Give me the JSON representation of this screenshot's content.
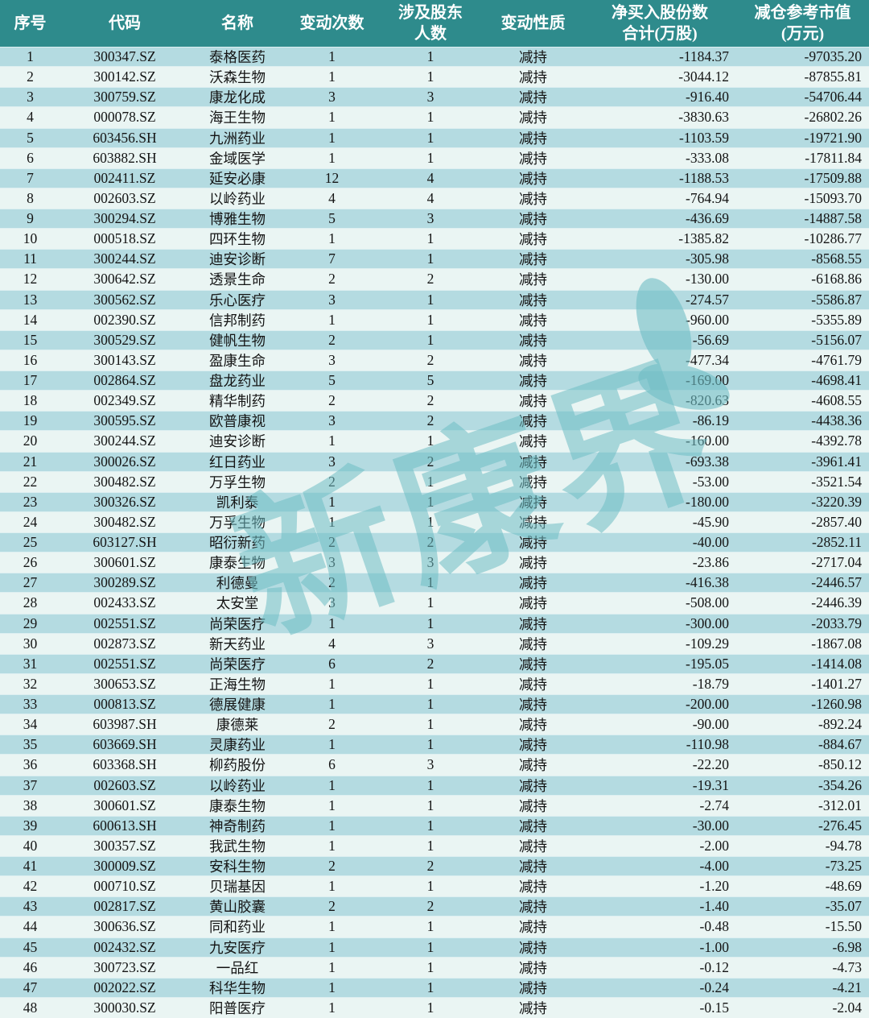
{
  "chart_data": {
    "type": "table",
    "columns": [
      {
        "label_lines": [
          "序号"
        ],
        "align": "center"
      },
      {
        "label_lines": [
          "代码"
        ],
        "align": "center"
      },
      {
        "label_lines": [
          "名称"
        ],
        "align": "center"
      },
      {
        "label_lines": [
          "变动次数"
        ],
        "align": "center"
      },
      {
        "label_lines": [
          "涉及股东",
          "人数"
        ],
        "align": "center"
      },
      {
        "label_lines": [
          "变动性质"
        ],
        "align": "center"
      },
      {
        "label_lines": [
          "净买入股份数",
          "合计(万股)"
        ],
        "align": "right"
      },
      {
        "label_lines": [
          "减仓参考市值",
          "(万元)"
        ],
        "align": "right"
      }
    ],
    "rows": [
      [
        "1",
        "300347.SZ",
        "泰格医药",
        "1",
        "1",
        "减持",
        "-1184.37",
        "-97035.20"
      ],
      [
        "2",
        "300142.SZ",
        "沃森生物",
        "1",
        "1",
        "减持",
        "-3044.12",
        "-87855.81"
      ],
      [
        "3",
        "300759.SZ",
        "康龙化成",
        "3",
        "3",
        "减持",
        "-916.40",
        "-54706.44"
      ],
      [
        "4",
        "000078.SZ",
        "海王生物",
        "1",
        "1",
        "减持",
        "-3830.63",
        "-26802.26"
      ],
      [
        "5",
        "603456.SH",
        "九洲药业",
        "1",
        "1",
        "减持",
        "-1103.59",
        "-19721.90"
      ],
      [
        "6",
        "603882.SH",
        "金域医学",
        "1",
        "1",
        "减持",
        "-333.08",
        "-17811.84"
      ],
      [
        "7",
        "002411.SZ",
        "延安必康",
        "12",
        "4",
        "减持",
        "-1188.53",
        "-17509.88"
      ],
      [
        "8",
        "002603.SZ",
        "以岭药业",
        "4",
        "4",
        "减持",
        "-764.94",
        "-15093.70"
      ],
      [
        "9",
        "300294.SZ",
        "博雅生物",
        "5",
        "3",
        "减持",
        "-436.69",
        "-14887.58"
      ],
      [
        "10",
        "000518.SZ",
        "四环生物",
        "1",
        "1",
        "减持",
        "-1385.82",
        "-10286.77"
      ],
      [
        "11",
        "300244.SZ",
        "迪安诊断",
        "7",
        "1",
        "减持",
        "-305.98",
        "-8568.55"
      ],
      [
        "12",
        "300642.SZ",
        "透景生命",
        "2",
        "2",
        "减持",
        "-130.00",
        "-6168.86"
      ],
      [
        "13",
        "300562.SZ",
        "乐心医疗",
        "3",
        "1",
        "减持",
        "-274.57",
        "-5586.87"
      ],
      [
        "14",
        "002390.SZ",
        "信邦制药",
        "1",
        "1",
        "减持",
        "-960.00",
        "-5355.89"
      ],
      [
        "15",
        "300529.SZ",
        "健帆生物",
        "2",
        "1",
        "减持",
        "-56.69",
        "-5156.07"
      ],
      [
        "16",
        "300143.SZ",
        "盈康生命",
        "3",
        "2",
        "减持",
        "-477.34",
        "-4761.79"
      ],
      [
        "17",
        "002864.SZ",
        "盘龙药业",
        "5",
        "5",
        "减持",
        "-169.00",
        "-4698.41"
      ],
      [
        "18",
        "002349.SZ",
        "精华制药",
        "2",
        "2",
        "减持",
        "-820.63",
        "-4608.55"
      ],
      [
        "19",
        "300595.SZ",
        "欧普康视",
        "3",
        "2",
        "减持",
        "-86.19",
        "-4438.36"
      ],
      [
        "20",
        "300244.SZ",
        "迪安诊断",
        "1",
        "1",
        "减持",
        "-160.00",
        "-4392.78"
      ],
      [
        "21",
        "300026.SZ",
        "红日药业",
        "3",
        "2",
        "减持",
        "-693.38",
        "-3961.41"
      ],
      [
        "22",
        "300482.SZ",
        "万孚生物",
        "2",
        "1",
        "减持",
        "-53.00",
        "-3521.54"
      ],
      [
        "23",
        "300326.SZ",
        "凯利泰",
        "1",
        "1",
        "减持",
        "-180.00",
        "-3220.39"
      ],
      [
        "24",
        "300482.SZ",
        "万孚生物",
        "1",
        "1",
        "减持",
        "-45.90",
        "-2857.40"
      ],
      [
        "25",
        "603127.SH",
        "昭衍新药",
        "2",
        "2",
        "减持",
        "-40.00",
        "-2852.11"
      ],
      [
        "26",
        "300601.SZ",
        "康泰生物",
        "3",
        "3",
        "减持",
        "-23.86",
        "-2717.04"
      ],
      [
        "27",
        "300289.SZ",
        "利德曼",
        "2",
        "1",
        "减持",
        "-416.38",
        "-2446.57"
      ],
      [
        "28",
        "002433.SZ",
        "太安堂",
        "3",
        "1",
        "减持",
        "-508.00",
        "-2446.39"
      ],
      [
        "29",
        "002551.SZ",
        "尚荣医疗",
        "1",
        "1",
        "减持",
        "-300.00",
        "-2033.79"
      ],
      [
        "30",
        "002873.SZ",
        "新天药业",
        "4",
        "3",
        "减持",
        "-109.29",
        "-1867.08"
      ],
      [
        "31",
        "002551.SZ",
        "尚荣医疗",
        "6",
        "2",
        "减持",
        "-195.05",
        "-1414.08"
      ],
      [
        "32",
        "300653.SZ",
        "正海生物",
        "1",
        "1",
        "减持",
        "-18.79",
        "-1401.27"
      ],
      [
        "33",
        "000813.SZ",
        "德展健康",
        "1",
        "1",
        "减持",
        "-200.00",
        "-1260.98"
      ],
      [
        "34",
        "603987.SH",
        "康德莱",
        "2",
        "1",
        "减持",
        "-90.00",
        "-892.24"
      ],
      [
        "35",
        "603669.SH",
        "灵康药业",
        "1",
        "1",
        "减持",
        "-110.98",
        "-884.67"
      ],
      [
        "36",
        "603368.SH",
        "柳药股份",
        "6",
        "3",
        "减持",
        "-22.20",
        "-850.12"
      ],
      [
        "37",
        "002603.SZ",
        "以岭药业",
        "1",
        "1",
        "减持",
        "-19.31",
        "-354.26"
      ],
      [
        "38",
        "300601.SZ",
        "康泰生物",
        "1",
        "1",
        "减持",
        "-2.74",
        "-312.01"
      ],
      [
        "39",
        "600613.SH",
        "神奇制药",
        "1",
        "1",
        "减持",
        "-30.00",
        "-276.45"
      ],
      [
        "40",
        "300357.SZ",
        "我武生物",
        "1",
        "1",
        "减持",
        "-2.00",
        "-94.78"
      ],
      [
        "41",
        "300009.SZ",
        "安科生物",
        "2",
        "2",
        "减持",
        "-4.00",
        "-73.25"
      ],
      [
        "42",
        "000710.SZ",
        "贝瑞基因",
        "1",
        "1",
        "减持",
        "-1.20",
        "-48.69"
      ],
      [
        "43",
        "002817.SZ",
        "黄山胶囊",
        "2",
        "2",
        "减持",
        "-1.40",
        "-35.07"
      ],
      [
        "44",
        "300636.SZ",
        "同和药业",
        "1",
        "1",
        "减持",
        "-0.48",
        "-15.50"
      ],
      [
        "45",
        "002432.SZ",
        "九安医疗",
        "1",
        "1",
        "减持",
        "-1.00",
        "-6.98"
      ],
      [
        "46",
        "300723.SZ",
        "一品红",
        "1",
        "1",
        "减持",
        "-0.12",
        "-4.73"
      ],
      [
        "47",
        "002022.SZ",
        "科华生物",
        "1",
        "1",
        "减持",
        "-0.24",
        "-4.21"
      ],
      [
        "48",
        "300030.SZ",
        "阳普医疗",
        "1",
        "1",
        "减持",
        "-0.15",
        "-2.04"
      ]
    ]
  },
  "watermark": {
    "text": "新康界"
  },
  "colors": {
    "header_bg": "#2E8B8C",
    "header_text": "#FFFFFF",
    "row_odd_bg": "#B4DBE1",
    "row_even_bg": "#EAF5F3",
    "body_text": "#141414",
    "watermark": "#6FBEC5"
  }
}
